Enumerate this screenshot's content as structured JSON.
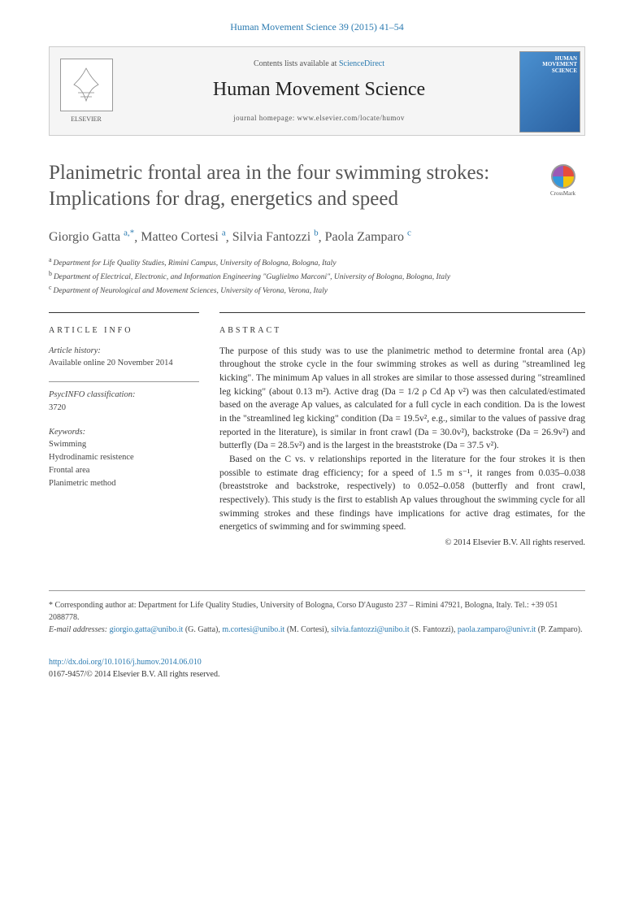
{
  "header_citation": "Human Movement Science 39 (2015) 41–54",
  "banner": {
    "contents_prefix": "Contents lists available at ",
    "contents_link": "ScienceDirect",
    "journal": "Human Movement Science",
    "homepage": "journal homepage: www.elsevier.com/locate/humov",
    "publisher": "ELSEVIER"
  },
  "title": "Planimetric frontal area in the four swimming strokes: Implications for drag, energetics and speed",
  "crossmark": "CrossMark",
  "authors_html": "Giorgio Gatta",
  "authors": [
    {
      "name": "Giorgio Gatta",
      "sup": "a,*"
    },
    {
      "name": "Matteo Cortesi",
      "sup": "a"
    },
    {
      "name": "Silvia Fantozzi",
      "sup": "b"
    },
    {
      "name": "Paola Zamparo",
      "sup": "c"
    }
  ],
  "affiliations": [
    {
      "sup": "a",
      "text": "Department for Life Quality Studies, Rimini Campus, University of Bologna, Bologna, Italy"
    },
    {
      "sup": "b",
      "text": "Department of Electrical, Electronic, and Information Engineering \"Guglielmo Marconi\", University of Bologna, Bologna, Italy"
    },
    {
      "sup": "c",
      "text": "Department of Neurological and Movement Sciences, University of Verona, Verona, Italy"
    }
  ],
  "article_info": {
    "heading": "ARTICLE INFO",
    "history_label": "Article history:",
    "history_value": "Available online 20 November 2014",
    "psyc_label": "PsycINFO classification:",
    "psyc_value": "3720",
    "keywords_label": "Keywords:",
    "keywords": [
      "Swimming",
      "Hydrodinamic resistence",
      "Frontal area",
      "Planimetric method"
    ]
  },
  "abstract": {
    "heading": "ABSTRACT",
    "p1": "The purpose of this study was to use the planimetric method to determine frontal area (Ap) throughout the stroke cycle in the four swimming strokes as well as during \"streamlined leg kicking\". The minimum Ap values in all strokes are similar to those assessed during \"streamlined leg kicking\" (about 0.13 m²). Active drag (Da = 1/2 ρ Cd Ap v²) was then calculated/estimated based on the average Ap values, as calculated for a full cycle in each condition. Da is the lowest in the \"streamlined leg kicking\" condition (Da = 19.5v², e.g., similar to the values of passive drag reported in the literature), is similar in front crawl (Da = 30.0v²), backstroke (Da = 26.9v²) and butterfly (Da = 28.5v²) and is the largest in the breaststroke (Da = 37.5 v²).",
    "p2": "Based on the C vs. v relationships reported in the literature for the four strokes it is then possible to estimate drag efficiency; for a speed of 1.5 m s⁻¹, it ranges from 0.035–0.038 (breaststroke and backstroke, respectively) to 0.052–0.058 (butterfly and front crawl, respectively). This study is the first to establish Ap values throughout the swimming cycle for all swimming strokes and these findings have implications for active drag estimates, for the energetics of swimming and for swimming speed.",
    "copyright": "© 2014 Elsevier B.V. All rights reserved."
  },
  "footer": {
    "corresponding": "* Corresponding author at: Department for Life Quality Studies, University of Bologna, Corso D'Augusto 237 – Rimini 47921, Bologna, Italy. Tel.: +39 051 2088778.",
    "email_label": "E-mail addresses: ",
    "emails": [
      {
        "addr": "giorgio.gatta@unibo.it",
        "name": "(G. Gatta)"
      },
      {
        "addr": "m.cortesi@unibo.it",
        "name": "(M. Cortesi)"
      },
      {
        "addr": "silvia.fantozzi@unibo.it",
        "name": "(S. Fantozzi)"
      },
      {
        "addr": "paola.zamparo@univr.it",
        "name": "(P. Zamparo)"
      }
    ]
  },
  "doi": {
    "url": "http://dx.doi.org/10.1016/j.humov.2014.06.010",
    "issn": "0167-9457/© 2014 Elsevier B.V. All rights reserved."
  }
}
